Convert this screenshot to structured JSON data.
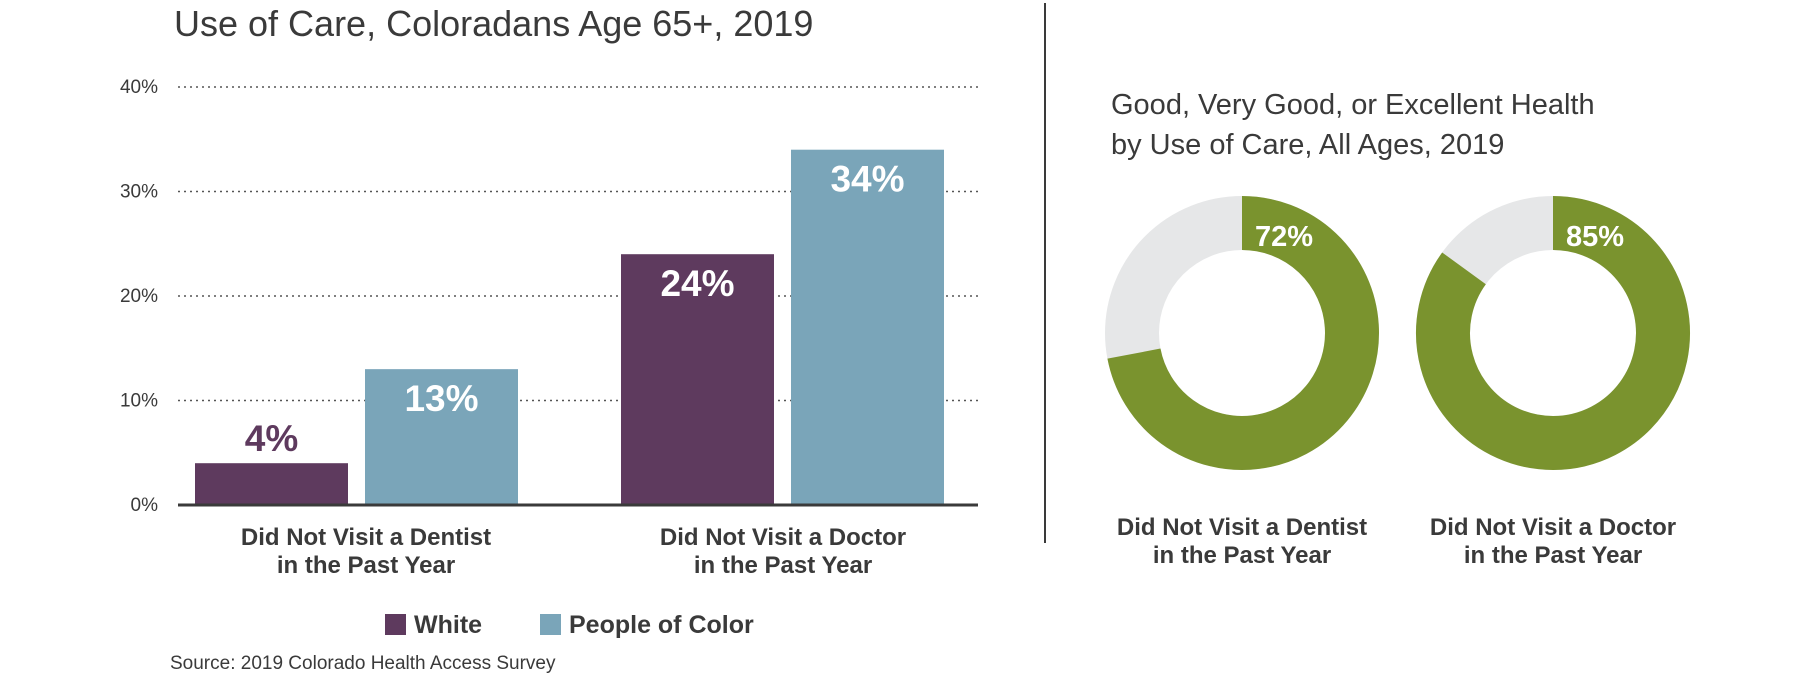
{
  "chart_data": [
    {
      "type": "bar",
      "title": "Use of Care, Coloradans Age 65+, 2019",
      "categories": [
        [
          "Did Not Visit a Dentist",
          "in the Past Year"
        ],
        [
          "Did Not Visit a Doctor",
          "in the Past Year"
        ]
      ],
      "series": [
        {
          "name": "White",
          "values": [
            4,
            24
          ],
          "labels": [
            "4%",
            "24%"
          ],
          "color": "#5e3a5e"
        },
        {
          "name": "People of Color",
          "values": [
            13,
            34
          ],
          "labels": [
            "13%",
            "34%"
          ],
          "color": "#7aa5b9"
        }
      ],
      "ylim": [
        0,
        40
      ],
      "yticks": [
        0,
        10,
        20,
        30,
        40
      ],
      "ytick_labels": [
        "0%",
        "10%",
        "20%",
        "30%",
        "40%"
      ],
      "grid": "dotted horizontal",
      "legend": "bottom-center",
      "source": "Source: 2019 Colorado Health Access Survey"
    },
    {
      "type": "pie",
      "title": [
        "Good, Very Good, or Excellent Health",
        "by Use of Care, All Ages, 2019"
      ],
      "donuts": [
        {
          "category": [
            "Did Not Visit a Dentist",
            "in the Past Year"
          ],
          "value": 72,
          "label": "72%"
        },
        {
          "category": [
            "Did Not Visit a Doctor",
            "in the Past Year"
          ],
          "value": 85,
          "label": "85%"
        }
      ],
      "colors": {
        "value": "#7a932e",
        "remainder": "#e6e7e8"
      }
    }
  ]
}
